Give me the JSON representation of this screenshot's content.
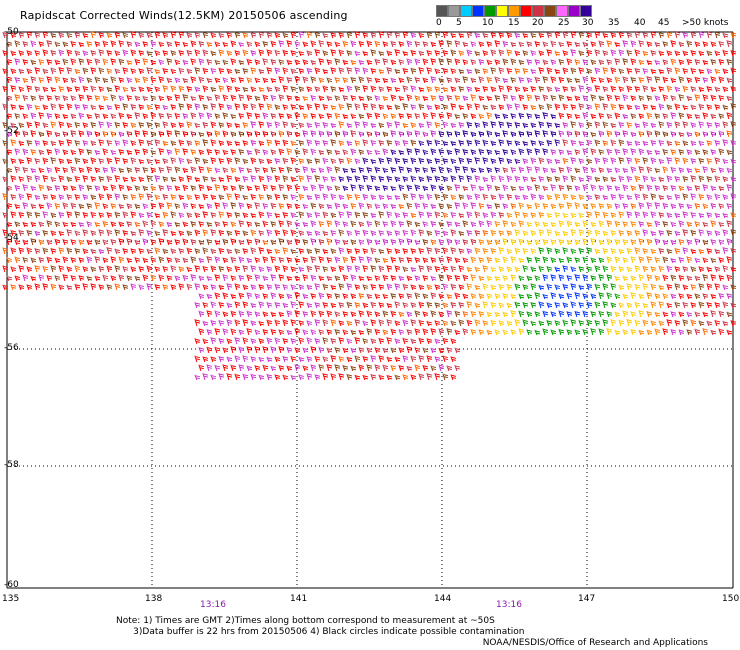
{
  "title": "Rapidscat Corrected Winds(12.5KM) 20150506 ascending",
  "legend": {
    "colors": [
      "#555555",
      "#999999",
      "#00ccff",
      "#0033ff",
      "#009900",
      "#ffff00",
      "#ff9900",
      "#ff0000",
      "#cc3344",
      "#8b4513",
      "#ff66ff",
      "#9900cc",
      "#330099"
    ],
    "labels": [
      "0",
      "5",
      "10",
      "15",
      "20",
      "25",
      "30",
      "35",
      "40",
      "45",
      ">50 knots"
    ]
  },
  "axes": {
    "lat_labels": [
      "-50",
      "-52",
      "-54",
      "-56",
      "-58",
      "-60"
    ],
    "lon_labels": [
      "135",
      "138",
      "141",
      "144",
      "147",
      "150"
    ]
  },
  "pass_times": [
    "13:16",
    "13:16"
  ],
  "note": "Note: 1) Times are GMT 2)Times along bottom correspond to measurement at ~50S\n      3)Data buffer is 22 hrs from 20150506 4) Black circles indicate possible contamination",
  "credit": "NOAA/NESDIS/Office of Research and Applications"
}
